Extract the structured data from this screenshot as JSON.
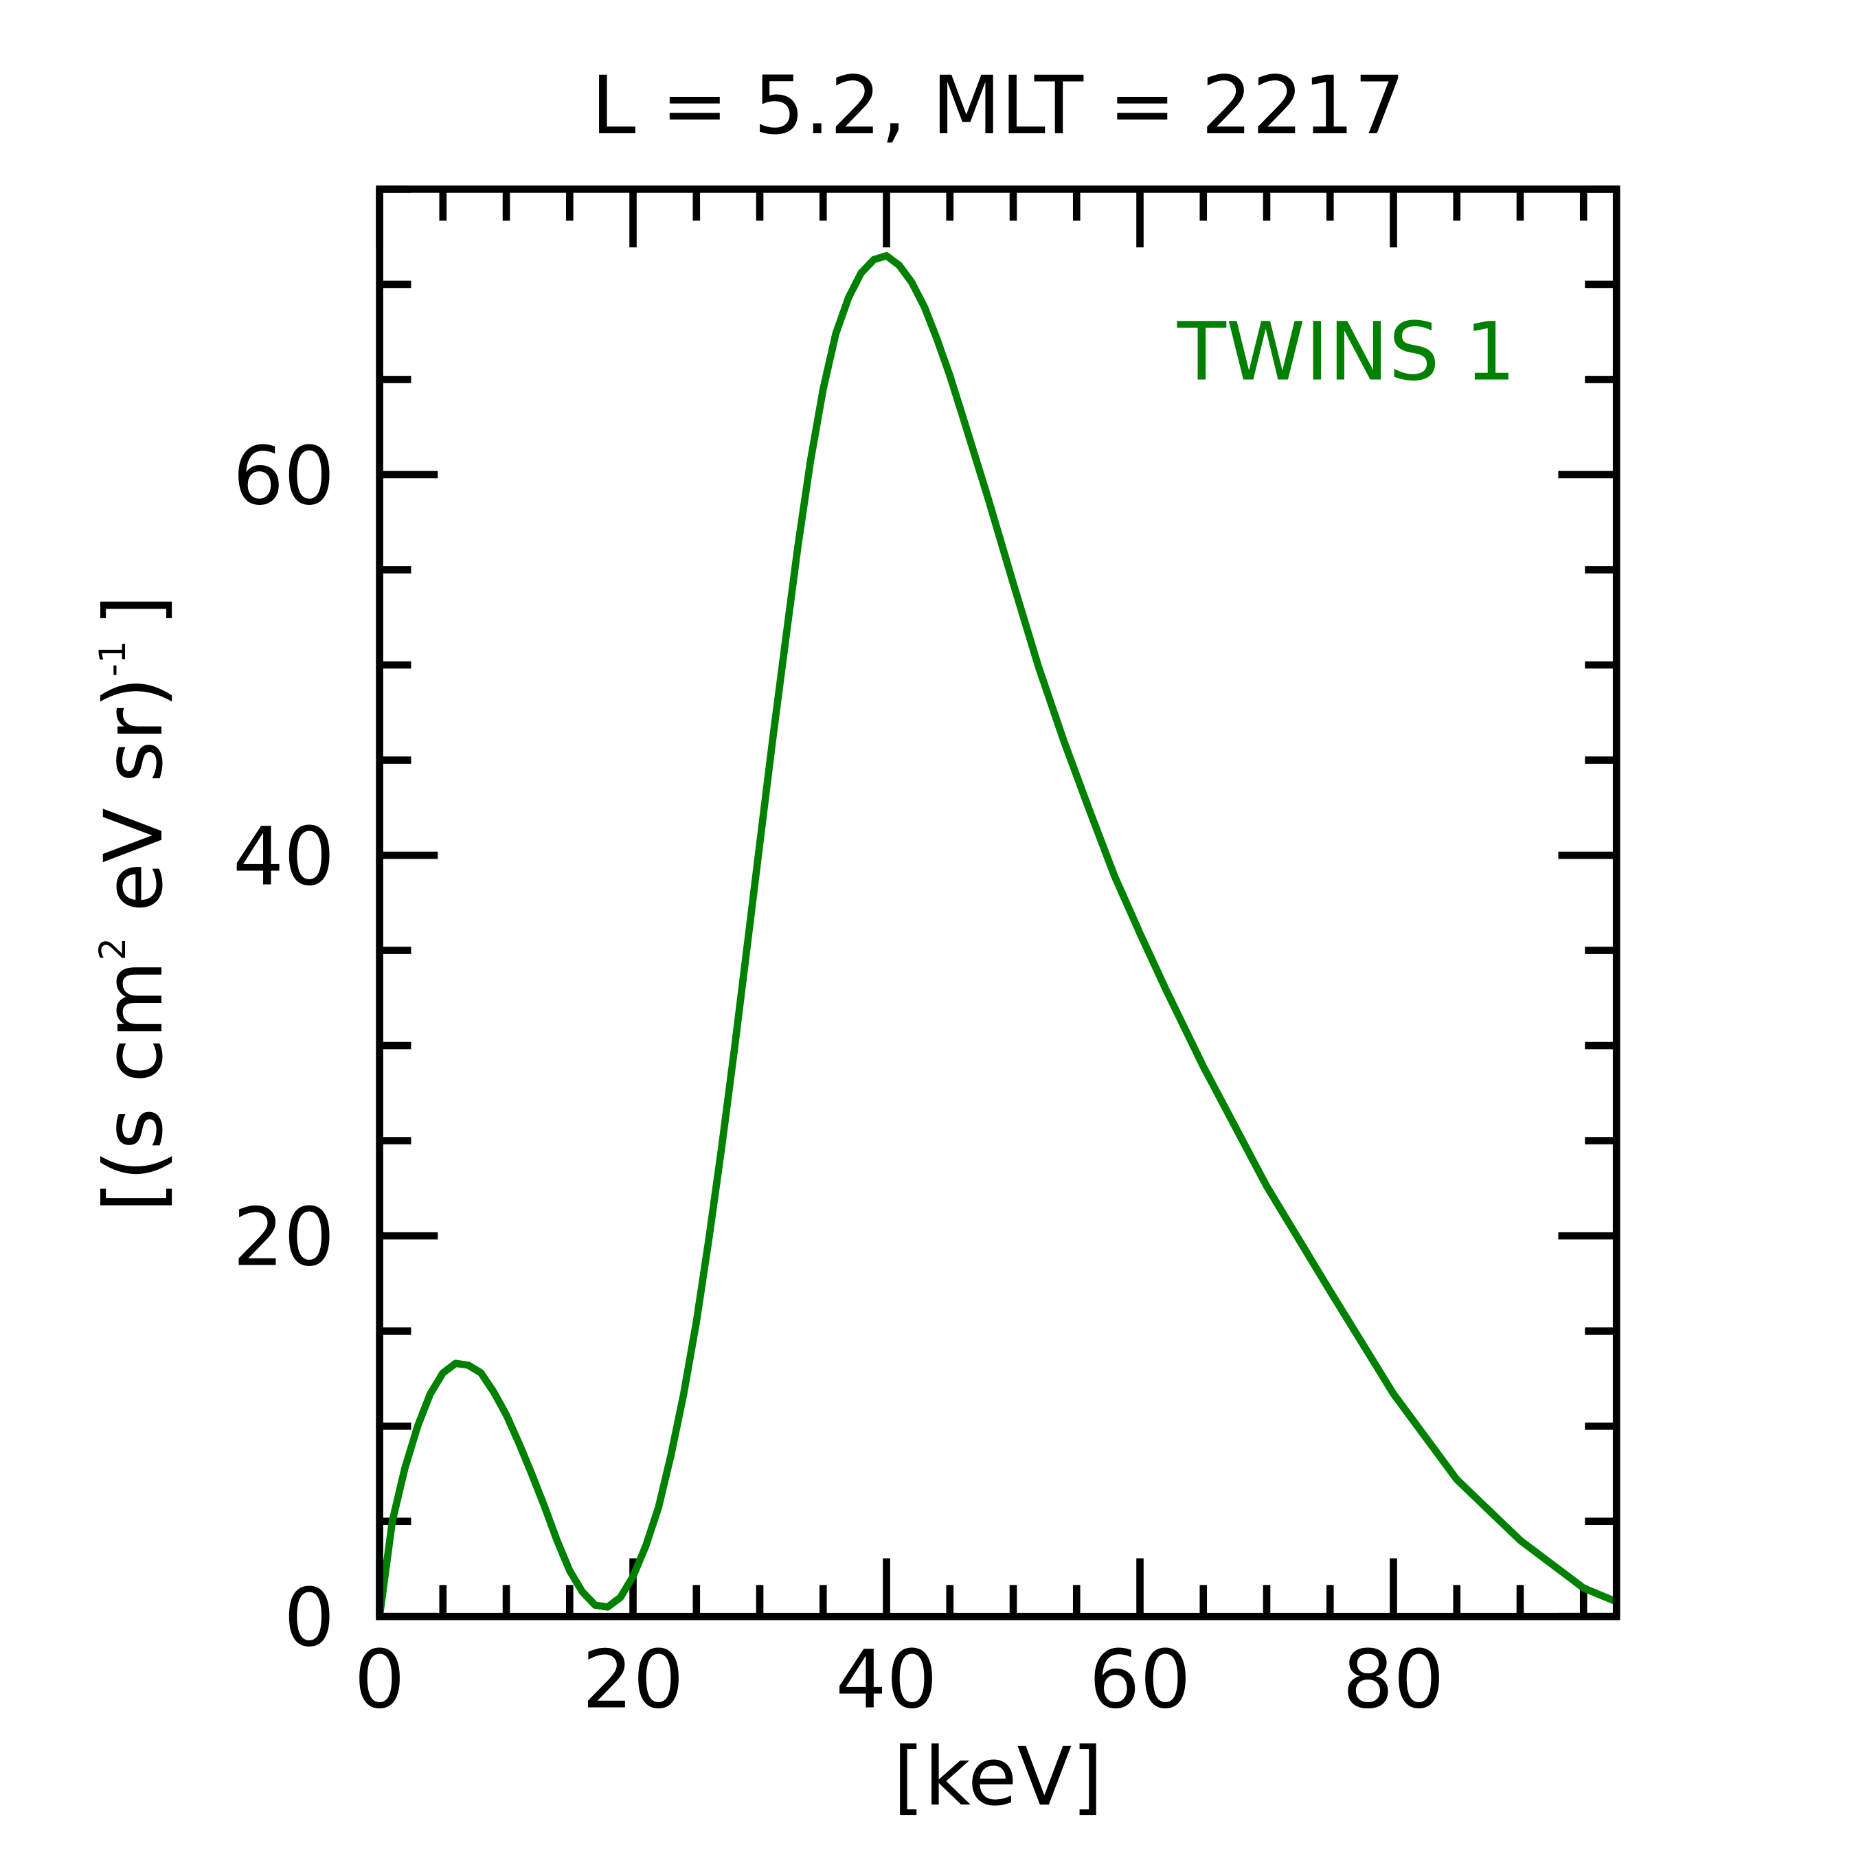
{
  "chart_data": {
    "type": "line",
    "title": "L =  5.2, MLT = 2217",
    "xlabel": "[keV]",
    "ylabel": "[(s cm",
    "ylabel_sup1": "2",
    "ylabel_mid": " eV sr)",
    "ylabel_sup2": "-1",
    "ylabel_end": "]",
    "xlim": [
      0,
      97.6
    ],
    "ylim": [
      0,
      75
    ],
    "xticks": [
      0,
      20,
      40,
      60,
      80
    ],
    "xtick_labels": [
      "0",
      "20",
      "40",
      "60",
      "80"
    ],
    "yticks": [
      0,
      20,
      40,
      60
    ],
    "ytick_labels": [
      "0",
      "20",
      "40",
      "60"
    ],
    "x_minor_step": 5,
    "y_minor_step": 5,
    "grid": false,
    "annotation": "TWINS 1",
    "legend_placement": "top-right",
    "series": [
      {
        "name": "TWINS 1",
        "color": "#008000",
        "x": [
          0,
          1,
          2,
          3,
          4,
          5,
          6,
          7,
          8,
          9,
          10,
          11,
          12,
          13,
          14,
          15,
          16,
          17,
          18,
          19,
          20,
          21,
          22,
          23,
          24,
          25,
          26,
          27,
          28,
          29,
          30,
          31,
          32,
          33,
          34,
          35,
          36,
          37,
          38,
          39,
          40,
          41,
          42,
          43,
          44,
          45,
          46,
          48,
          50,
          52,
          54,
          56,
          58,
          60,
          62,
          65,
          70,
          75,
          80,
          85,
          90,
          95,
          97.5
        ],
        "y": [
          0,
          5,
          7.8,
          10,
          11.7,
          12.8,
          13.3,
          13.2,
          12.8,
          11.8,
          10.6,
          9.1,
          7.5,
          5.8,
          4,
          2.4,
          1.3,
          0.6,
          0.5,
          1.0,
          2.1,
          3.7,
          5.7,
          8.5,
          11.7,
          15.5,
          19.9,
          24.7,
          29.8,
          35.2,
          40.6,
          46,
          51.1,
          56.2,
          60.7,
          64.5,
          67.4,
          69.3,
          70.6,
          71.3,
          71.5,
          71,
          70.1,
          68.8,
          67.1,
          65.2,
          63.1,
          58.8,
          54.3,
          49.9,
          46,
          42.4,
          38.9,
          35.9,
          33,
          28.9,
          22.6,
          17.1,
          11.7,
          7.2,
          4,
          1.5,
          0.8
        ]
      }
    ]
  }
}
